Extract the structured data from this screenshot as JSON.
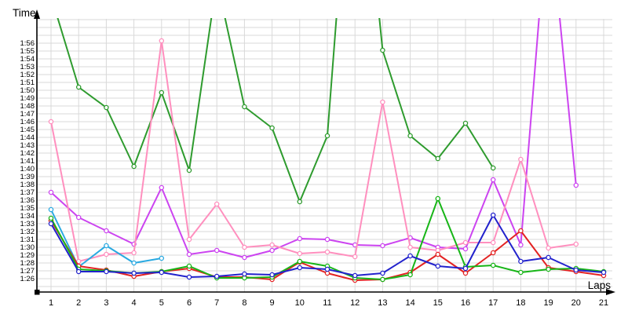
{
  "chart_data": {
    "type": "line",
    "title": "",
    "xlabel": "Laps",
    "ylabel": "Time",
    "x_tick_labels": [
      "1",
      "2",
      "3",
      "4",
      "5",
      "6",
      "7",
      "8",
      "9",
      "10",
      "11",
      "12",
      "13",
      "14",
      "15",
      "16",
      "17",
      "18",
      "19",
      "20",
      "21"
    ],
    "y_tick_labels": [
      "1:26",
      "1:27",
      "1:28",
      "1:29",
      "1:30",
      "1:31",
      "1:32",
      "1:33",
      "1:34",
      "1:35",
      "1:36",
      "1:37",
      "1:38",
      "1:39",
      "1:40",
      "1:41",
      "1:42",
      "1:43",
      "1:44",
      "1:45",
      "1:46",
      "1:47",
      "1:48",
      "1:49",
      "1:50",
      "1:51",
      "1:52",
      "1:53",
      "1:54",
      "1:55",
      "1:56"
    ],
    "y_axis_format": "m:ss (lap time)",
    "y_first_tick_seconds": 86,
    "ylim_seconds": [
      85,
      119.5
    ],
    "grid": true,
    "legend": "none",
    "note": "values are lap times in seconds read from the chart; null = series has no point on that lap; values above 119.5s run off the top of the plot (clipped)",
    "series": [
      {
        "name": "dark-green",
        "color": "#2E9B2E",
        "values": [
          122,
          110.4,
          107.8,
          100.3,
          109.7,
          99.8,
          124,
          107.9,
          105.2,
          95.8,
          104.2,
          150,
          115.1,
          104.2,
          101.3,
          105.8,
          100.1,
          null,
          null,
          null,
          null
        ]
      },
      {
        "name": "magenta",
        "color": "#CC44F0",
        "values": [
          97,
          93.8,
          92.1,
          90.4,
          97.6,
          89.1,
          89.6,
          88.7,
          89.6,
          91.1,
          91,
          90.3,
          90.2,
          91.2,
          90,
          89.8,
          98.6,
          90.3,
          134,
          97.9,
          null
        ]
      },
      {
        "name": "pink",
        "color": "#FF8FBE",
        "values": [
          106,
          88.2,
          89.1,
          89.3,
          116.3,
          91,
          95.5,
          90,
          90.3,
          89.2,
          89.4,
          88.8,
          108.5,
          90,
          89.6,
          90.6,
          90.6,
          101.2,
          89.9,
          90.4,
          null
        ]
      },
      {
        "name": "cyan",
        "color": "#29A9E1",
        "values": [
          94.8,
          87.5,
          90.2,
          88,
          88.6,
          null,
          null,
          null,
          null,
          null,
          null,
          null,
          null,
          null,
          null,
          null,
          null,
          null,
          null,
          null,
          null
        ]
      },
      {
        "name": "red",
        "color": "#E32222",
        "values": [
          93.4,
          87.6,
          87.1,
          86.3,
          86.9,
          87.3,
          86.2,
          86.2,
          85.9,
          88.1,
          86.7,
          85.8,
          85.9,
          86.8,
          89.1,
          86.7,
          89.3,
          92.1,
          87.4,
          86.9,
          86.4
        ]
      },
      {
        "name": "green",
        "color": "#17B517",
        "values": [
          93.7,
          87.2,
          87,
          86.7,
          86.9,
          87.6,
          86.1,
          86.1,
          86.2,
          88.2,
          87.6,
          86.1,
          85.9,
          86.5,
          96.2,
          87.5,
          87.7,
          86.8,
          87.2,
          87.3,
          86.9
        ]
      },
      {
        "name": "blue",
        "color": "#2222CC",
        "values": [
          93,
          86.9,
          86.9,
          86.7,
          86.8,
          86.2,
          86.3,
          86.6,
          86.5,
          87.4,
          87.2,
          86.4,
          86.7,
          88.9,
          87.6,
          87.3,
          94.1,
          88.2,
          88.7,
          87.1,
          86.8
        ]
      }
    ]
  },
  "style": {
    "background": "#FFFFFF",
    "gridline_color": "#D9D9D9",
    "axis_color": "#000000",
    "marker": "open-circle-white-fill"
  }
}
